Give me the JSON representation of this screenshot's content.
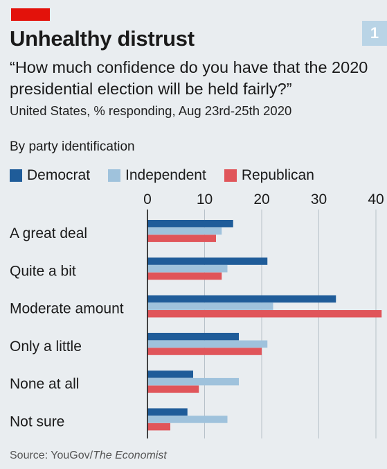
{
  "header": {
    "figure_number": "1",
    "title": "Unhealthy distrust",
    "subtitle": "“How much confidence do you have that the 2020 presidential election will be held fairly?”",
    "description": "United States, % responding, Aug 23rd-25th 2020",
    "section_label": "By party identification"
  },
  "colors": {
    "accent_red": "#e3120b",
    "democrat": "#1f5c99",
    "independent": "#9fc2dc",
    "republican": "#e0555a",
    "gridline": "#b7c1c9"
  },
  "chart_data": {
    "type": "bar",
    "orientation": "horizontal",
    "categories": [
      "A great deal",
      "Quite a bit",
      "Moderate amount",
      "Only a little",
      "None at all",
      "Not sure"
    ],
    "series": [
      {
        "name": "Democrat",
        "values": [
          15,
          21,
          33,
          16,
          8,
          7
        ]
      },
      {
        "name": "Independent",
        "values": [
          13,
          14,
          22,
          21,
          16,
          14
        ]
      },
      {
        "name": "Republican",
        "values": [
          12,
          13,
          41,
          20,
          9,
          4
        ]
      }
    ],
    "xticks": [
      0,
      10,
      20,
      30,
      40
    ],
    "xlim": [
      0,
      41
    ],
    "legend_placement": "top-left",
    "grid": true
  },
  "footer": {
    "source_prefix": "Source: YouGov/",
    "source_italic": "The Economist"
  }
}
